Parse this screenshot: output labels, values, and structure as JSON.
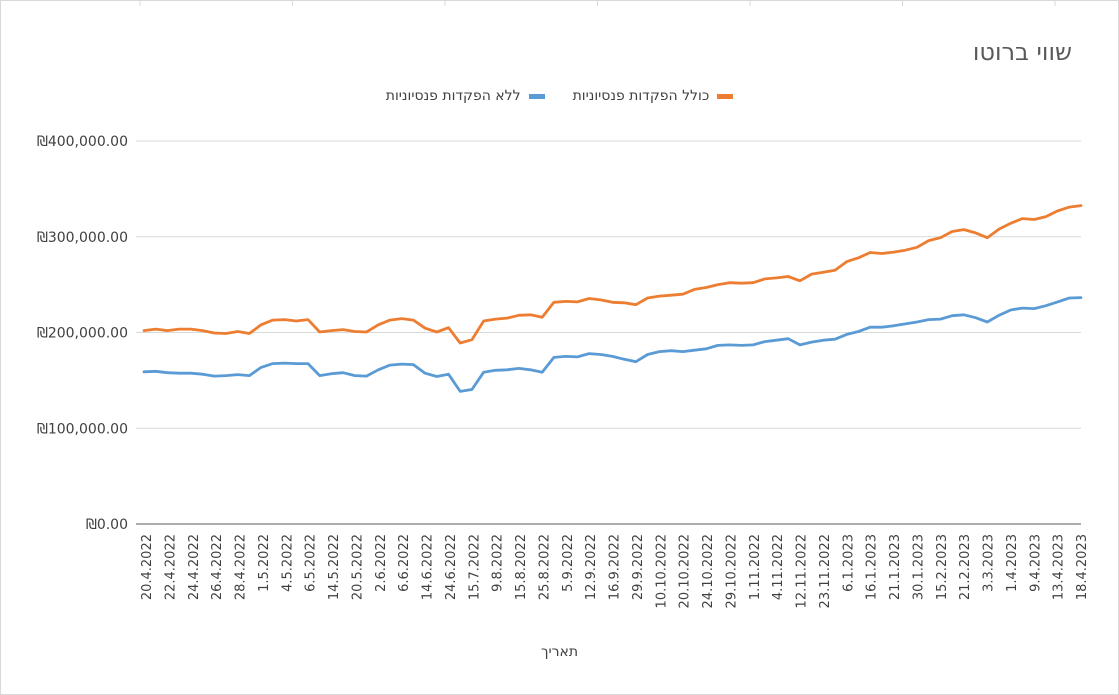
{
  "chart_data": {
    "type": "line",
    "title": "שווי ברוטו",
    "xlabel": "תאריך",
    "ylabel": "",
    "ylim": [
      0,
      400000
    ],
    "y_ticks": [
      "₪0.00",
      "₪100,000.00",
      "₪200,000.00",
      "₪300,000.00",
      "₪400,000.00"
    ],
    "y_tick_values": [
      0,
      100000,
      200000,
      300000,
      400000
    ],
    "grid": true,
    "legend_position": "top",
    "x_tick_labels": [
      "20.4.2022",
      "22.4.2022",
      "24.4.2022",
      "26.4.2022",
      "28.4.2022",
      "1.5.2022",
      "4.5.2022",
      "6.5.2022",
      "14.5.2022",
      "20.5.2022",
      "2.6.2022",
      "6.6.2022",
      "14.6.2022",
      "24.6.2022",
      "15.7.2022",
      "9.8.2022",
      "15.8.2022",
      "25.8.2022",
      "5.9.2022",
      "12.9.2022",
      "16.9.2022",
      "29.9.2022",
      "10.10.2022",
      "20.10.2022",
      "24.10.2022",
      "29.10.2022",
      "1.11.2022",
      "4.11.2022",
      "12.11.2022",
      "23.11.2022",
      "6.1.2023",
      "16.1.2023",
      "21.1.2023",
      "30.1.2023",
      "15.2.2023",
      "21.2.2023",
      "3.3.2023",
      "1.4.2023",
      "9.4.2023",
      "13.4.2023",
      "18.4.2023"
    ],
    "series": [
      {
        "name": "כולל הפקדות פנסיוניות",
        "color": "#ED7D31",
        "values": [
          202000,
          203500,
          202000,
          203500,
          203500,
          202000,
          199500,
          199000,
          201000,
          199000,
          208000,
          213000,
          213500,
          212000,
          213500,
          200500,
          202000,
          203000,
          201000,
          200500,
          208000,
          213000,
          214500,
          213000,
          204500,
          200500,
          205000,
          189000,
          192500,
          212000,
          214000,
          215000,
          218000,
          218500,
          216000,
          231500,
          232500,
          232000,
          235500,
          234000,
          231500,
          231000,
          229000,
          236000,
          238000,
          239000,
          240000,
          245000,
          247000,
          250000,
          252000,
          251500,
          252000,
          256000,
          257000,
          258500,
          254000,
          261000,
          263000,
          265000,
          274000,
          278000,
          283500,
          282500,
          284000,
          286000,
          289000,
          296000,
          299000,
          305500,
          307500,
          304000,
          299000,
          308000,
          314000,
          319000,
          318000,
          321000,
          327000,
          331000,
          332500
        ]
      },
      {
        "name": "ללא הפקדות פנסיוניות",
        "color": "#5B9BD5",
        "values": [
          159000,
          159500,
          158000,
          157500,
          157500,
          156500,
          154500,
          155000,
          156000,
          155000,
          163500,
          167500,
          168000,
          167500,
          167500,
          155000,
          157000,
          158000,
          155000,
          154500,
          161000,
          166000,
          167000,
          166500,
          157500,
          154000,
          156500,
          138500,
          140500,
          158500,
          160500,
          161000,
          162500,
          161000,
          158500,
          174000,
          175000,
          174500,
          178000,
          177000,
          175000,
          172000,
          169500,
          177000,
          180000,
          181000,
          180000,
          181500,
          183000,
          186500,
          187000,
          186500,
          187000,
          190500,
          192000,
          193500,
          187000,
          190000,
          192000,
          193000,
          198000,
          201000,
          205500,
          205500,
          207000,
          209000,
          211000,
          213500,
          214000,
          217500,
          218500,
          215500,
          211000,
          218000,
          223500,
          225500,
          225000,
          228000,
          232000,
          236000,
          236500
        ]
      }
    ]
  },
  "top_tick_count": 8
}
